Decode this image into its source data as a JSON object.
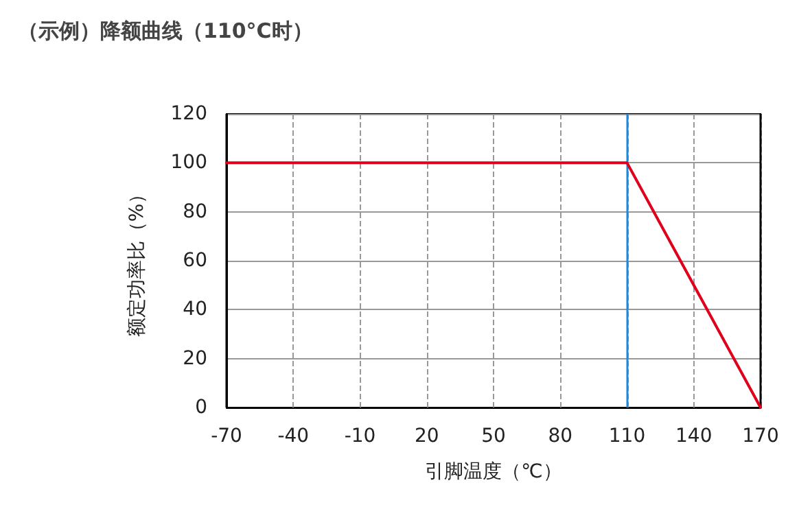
{
  "chart_data": {
    "type": "line",
    "title": "（示例）降额曲线（110°C时）",
    "xlabel": "引脚温度（℃）",
    "ylabel": "额定功率比（%）",
    "series": [
      {
        "color": "#e0001b",
        "x": [
          -70,
          110,
          170
        ],
        "values": [
          100,
          100,
          0
        ]
      }
    ],
    "xlim": [
      -70,
      170
    ],
    "xticks": [
      -70,
      -40,
      -10,
      20,
      50,
      80,
      110,
      140,
      170
    ],
    "ylim": [
      0,
      120
    ],
    "yticks": [
      0,
      20,
      40,
      60,
      80,
      100,
      120
    ],
    "ref_lines": [
      {
        "axis": "x",
        "value": -70,
        "color": "#000000"
      },
      {
        "axis": "x",
        "value": 110,
        "color": "#1a8ae0"
      },
      {
        "axis": "x",
        "value": 170,
        "color": "#000000"
      }
    ],
    "grid": true,
    "marker": "none",
    "line_style": "solid"
  }
}
